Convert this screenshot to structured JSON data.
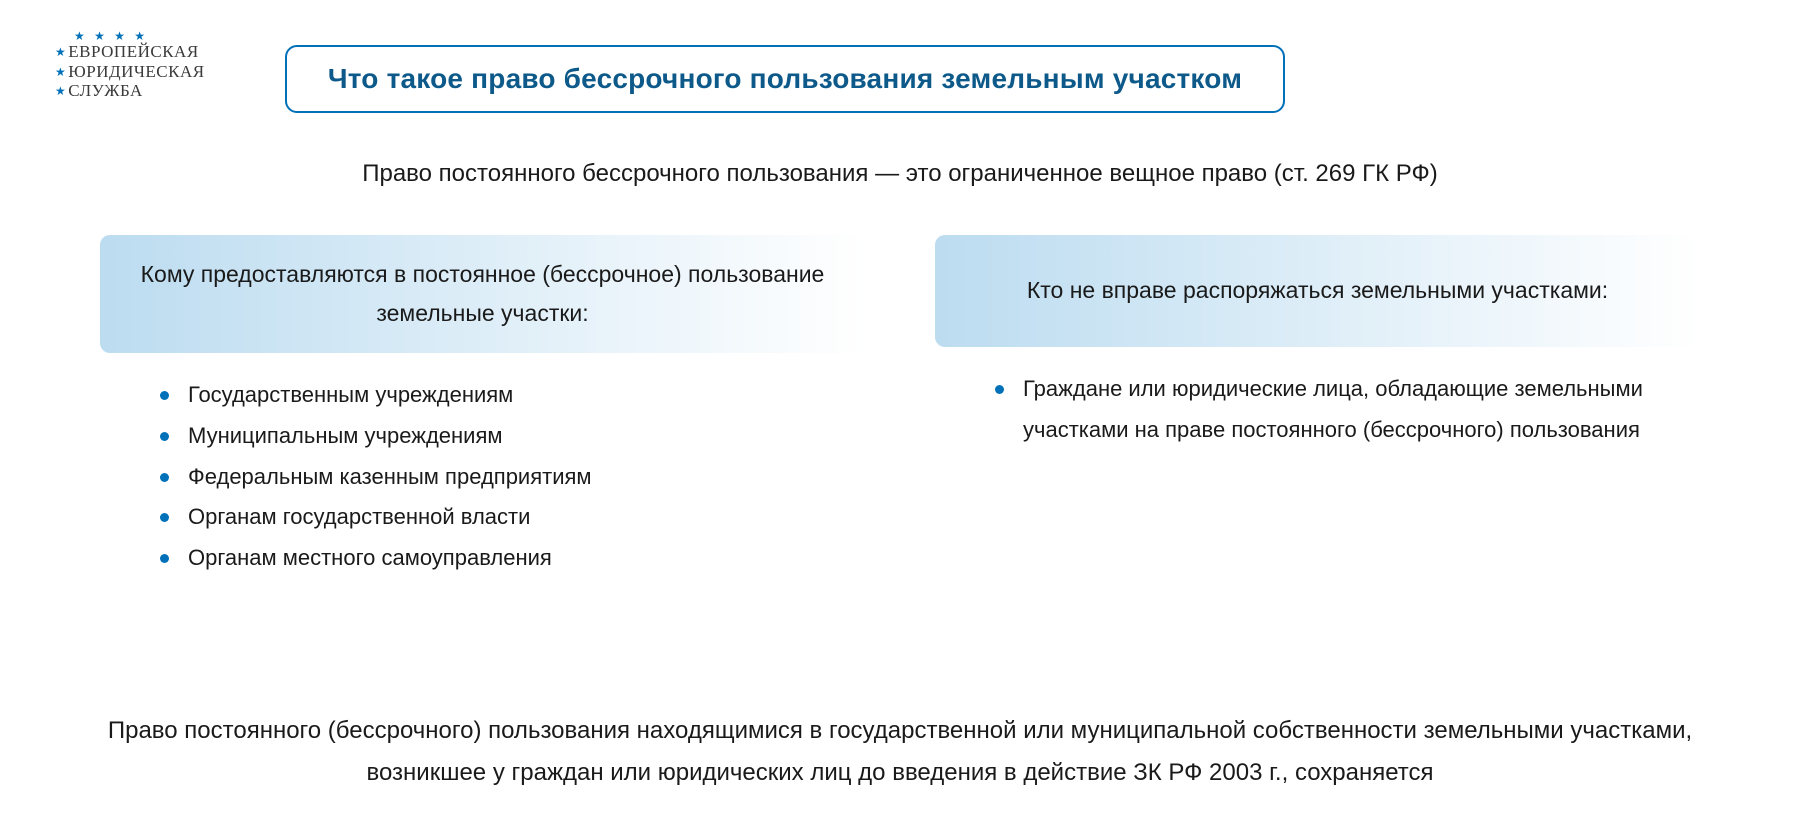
{
  "logo": {
    "line1": "ЕВРОПЕЙСКАЯ",
    "line2": "ЮРИДИЧЕСКАЯ",
    "line3": "СЛУЖБА"
  },
  "title": "Что такое право бессрочного пользования земельным участком",
  "subtitle": "Право постоянного бессрочного пользования — это ограниченное вещное право (ст. 269 ГК РФ)",
  "columns": {
    "left": {
      "header": "Кому предоставляются в постоянное (бессрочное) пользование земельные участки:",
      "items": [
        "Государственным учреждениям",
        "Муниципальным учреждениям",
        "Федеральным казенным предприятиям",
        "Органам государственной власти",
        "Органам местного самоуправления"
      ]
    },
    "right": {
      "header": "Кто не вправе распоряжаться земельными участками:",
      "items": [
        "Граждане или юридические лица, обладающие земельными участками на праве постоянного (бессрочного) пользования"
      ]
    }
  },
  "footer": "Право постоянного (бессрочного) пользования находящимися в государственной или муниципальной собственности земельными участками, возникшее у граждан или юридических лиц до введения в действие ЗК РФ 2003 г., сохраняется",
  "styling": {
    "page_bg": "#ffffff",
    "accent_color": "#0070b8",
    "title_color": "#0d5a8a",
    "text_color": "#1a1a1a",
    "gradient_start": "#bcdcf0",
    "gradient_end": "#ffffff",
    "border_radius": 12,
    "body_fontsize": 24,
    "title_fontsize": 28,
    "list_fontsize": 22,
    "col_header_fontsize": 23
  }
}
